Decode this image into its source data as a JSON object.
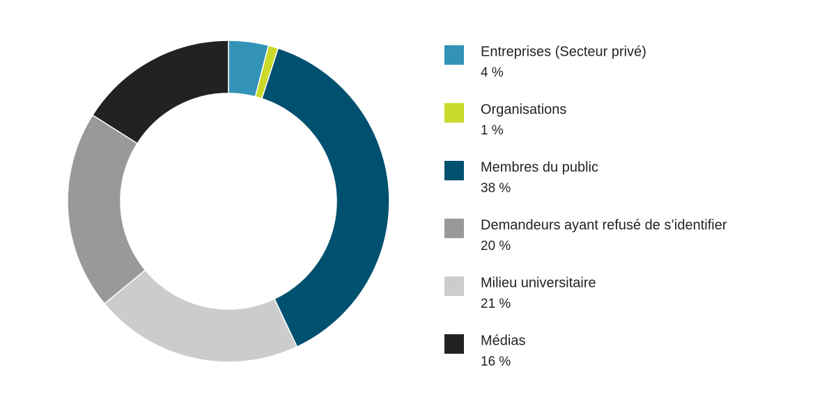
{
  "chart_data": {
    "type": "donut",
    "categories": [
      "Entreprises (Secteur privé)",
      "Organisations",
      "Membres du public",
      "Demandeurs ayant refusé de s’identifier",
      "Milieu universitaire",
      "Médias"
    ],
    "values": [
      4,
      1,
      38,
      20,
      21,
      16
    ],
    "value_labels": [
      "4 %",
      "1 %",
      "38 %",
      "20 %",
      "21 %",
      "16 %"
    ],
    "colors": [
      "#3393b6",
      "#c9da2a",
      "#00506f",
      "#999999",
      "#cccccc",
      "#222222"
    ],
    "legend": "right"
  }
}
